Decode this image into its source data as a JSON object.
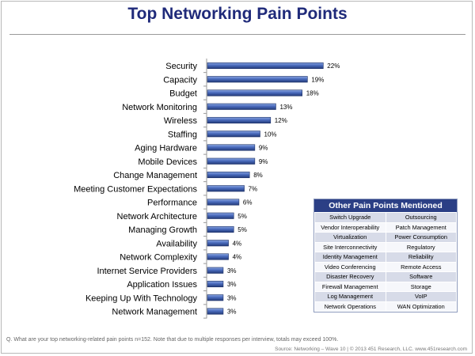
{
  "chart_data": {
    "type": "bar",
    "orientation": "horizontal",
    "title": "Top Networking Pain Points",
    "categories": [
      "Security",
      "Capacity",
      "Budget",
      "Network Monitoring",
      "Wireless",
      "Staffing",
      "Aging Hardware",
      "Mobile Devices",
      "Change Management",
      "Meeting Customer Expectations",
      "Performance",
      "Network Architecture",
      "Managing Growth",
      "Availability",
      "Network Complexity",
      "Internet Service Providers",
      "Application Issues",
      "Keeping Up With Technology",
      "Network Management"
    ],
    "values": [
      22,
      19,
      18,
      13,
      12,
      10,
      9,
      9,
      8,
      7,
      6,
      5,
      5,
      4,
      4,
      3,
      3,
      3,
      3
    ],
    "value_labels": [
      "22%",
      "19%",
      "18%",
      "13%",
      "12%",
      "10%",
      "9%",
      "9%",
      "8%",
      "7%",
      "6%",
      "5%",
      "5%",
      "4%",
      "4%",
      "3%",
      "3%",
      "3%",
      "3%"
    ],
    "xlim": [
      0,
      24
    ],
    "xlabel": "",
    "ylabel": "",
    "grid": false,
    "legend": "none",
    "bar_color": "#3a5aa6"
  },
  "other_pain_points": {
    "title": "Other Pain Points Mentioned",
    "items": [
      [
        "Switch Upgrade",
        "Outsourcing"
      ],
      [
        "Vendor Interoperability",
        "Patch Management"
      ],
      [
        "Virtualization",
        "Power Consumption"
      ],
      [
        "Site Interconnectivity",
        "Regulatory"
      ],
      [
        "Identity Management",
        "Reliability"
      ],
      [
        "Video Conferencing",
        "Remote Access"
      ],
      [
        "Disaster Recovery",
        "Software"
      ],
      [
        "Firewall Management",
        "Storage"
      ],
      [
        "Log Management",
        "VoIP"
      ],
      [
        "Network Operations",
        "WAN Optimization"
      ]
    ]
  },
  "footnote": "Q. What are your top networking-related pain points n=152. Note that due to multiple responses per interview, totals may exceed 100%.",
  "source": "Source: Networking – Wave 10 | © 2013 451 Research, LLC. www.451research.com",
  "colors": {
    "title": "#1f2a7a",
    "bar_dark": "#27407f",
    "bar_light": "#6f8fd4",
    "table_header": "#2b3f85",
    "table_shade": "#d7dbe8"
  }
}
